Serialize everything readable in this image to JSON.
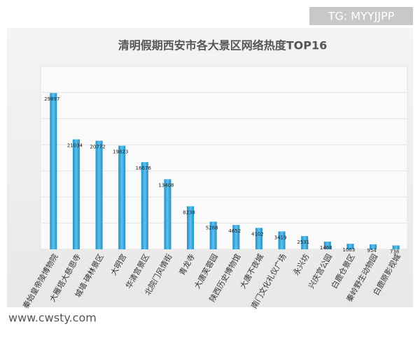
{
  "chart_data": {
    "type": "bar",
    "title": "清明假期西安市各大景区网络热度TOP16",
    "categories": [
      "秦始皇帝陵博物院",
      "大雁塔大慈恩寺",
      "城墙·碑林景区",
      "大明宫",
      "华清宫景区",
      "北院门风情街",
      "青龙寺",
      "大唐芙蓉园",
      "陕西历史博物馆",
      "大唐不夜城",
      "南门文化礼仪广场",
      "永兴坊",
      "兴庆宫公园",
      "白鹿仓景区",
      "秦岭野生动物园",
      "白鹿原影视城"
    ],
    "values": [
      29897,
      21034,
      20772,
      19823,
      16676,
      13408,
      8238,
      5288,
      4652,
      4102,
      3419,
      2531,
      1468,
      1063,
      954,
      738
    ],
    "color": "#3aa9dc",
    "ylim": [
      0,
      35000
    ],
    "yticks": [
      0,
      5000,
      10000,
      15000,
      20000,
      25000,
      30000,
      35000
    ],
    "grid": true,
    "annotations": [
      "TG: MYYJJPP",
      "www.cwsty.com"
    ]
  }
}
